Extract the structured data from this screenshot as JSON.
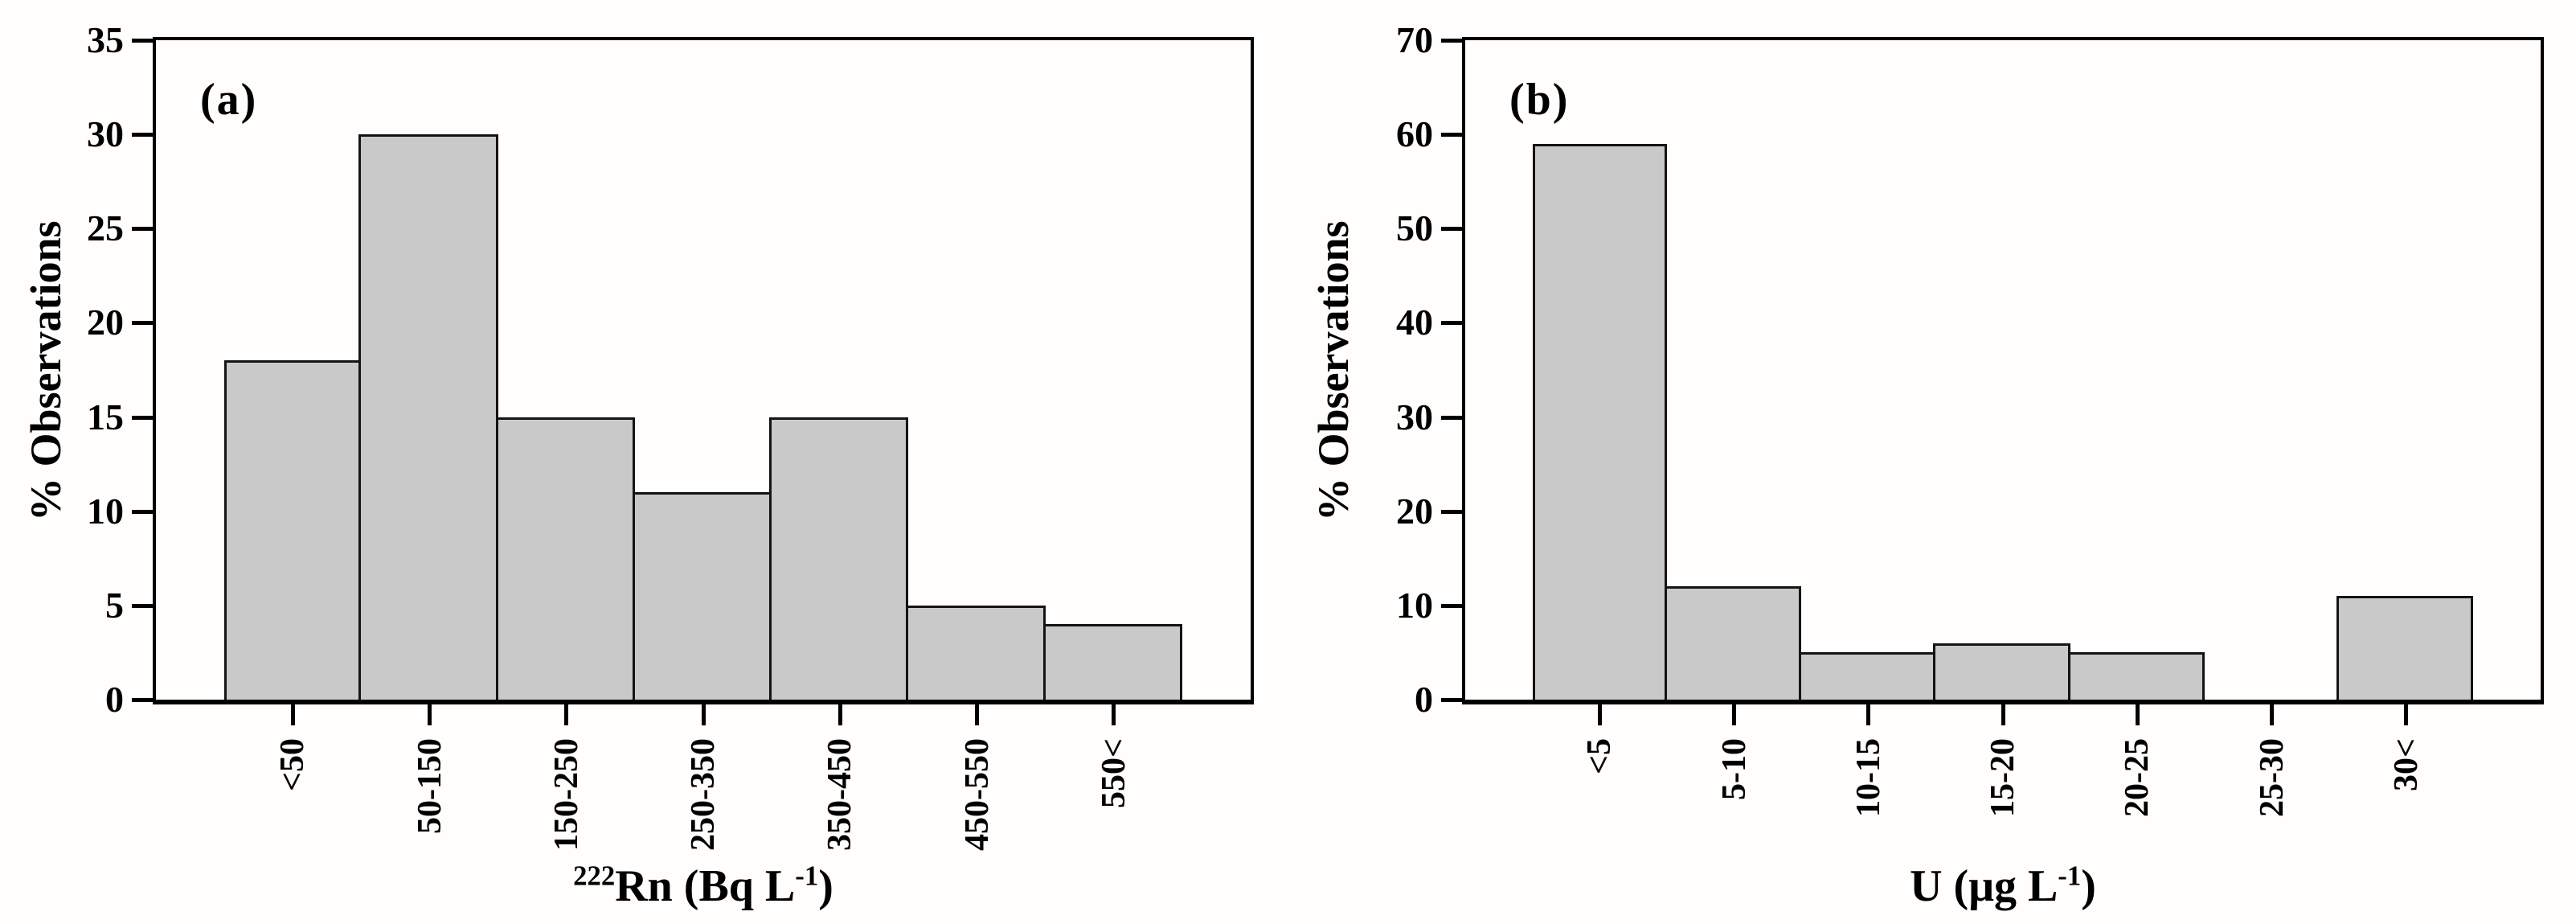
{
  "figure": {
    "background": "#fffefc",
    "text_color": "#000000",
    "axis_color": "#000000"
  },
  "chart_data": [
    {
      "type": "bar",
      "panel_label": "(a)",
      "categories": [
        "<50",
        "50-150",
        "150-250",
        "250-350",
        "350-450",
        "450-550",
        "550<"
      ],
      "values": [
        18,
        30,
        15,
        11,
        15,
        5,
        4
      ],
      "title": "",
      "xlabel": "²²²Rn (Bq L⁻¹)",
      "xlabel_parts": {
        "pre_sup": "222",
        "main": "Rn (Bq L",
        "sup": "-1",
        "end": ")"
      },
      "ylabel": "% Observations",
      "ylim": [
        0,
        35
      ],
      "yticks": [
        0,
        5,
        10,
        15,
        20,
        25,
        30,
        35
      ],
      "grid": false,
      "legend": "none",
      "bar_fill": "#c9c9c9",
      "bar_border": "#141414"
    },
    {
      "type": "bar",
      "panel_label": "(b)",
      "categories": [
        "<5",
        "5-10",
        "10-15",
        "15-20",
        "20-25",
        "25-30",
        "30<"
      ],
      "values": [
        59,
        12,
        5,
        6,
        5,
        0,
        11
      ],
      "title": "",
      "xlabel": "U (μg L⁻¹)",
      "xlabel_parts": {
        "pre_sup": "",
        "main": "U (μg L",
        "sup": "-1",
        "end": ")"
      },
      "ylabel": "% Observations",
      "ylim": [
        0,
        70
      ],
      "yticks": [
        0,
        10,
        20,
        30,
        40,
        50,
        60,
        70
      ],
      "grid": false,
      "legend": "none",
      "bar_fill": "#c9c9c9",
      "bar_border": "#141414"
    }
  ]
}
